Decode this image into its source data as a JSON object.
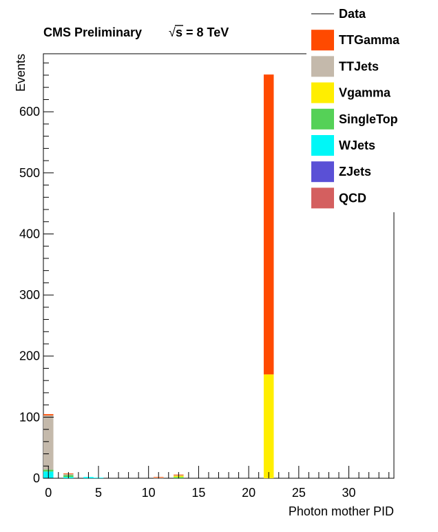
{
  "header": {
    "experiment": "CMS Preliminary",
    "energy_prefix": "s = 8 TeV"
  },
  "chart_data": {
    "type": "bar",
    "stacked": true,
    "title": "CMS Preliminary √s = 8 TeV",
    "xlabel": "Photon mother PID",
    "ylabel": "Events",
    "xlim": [
      -0.5,
      34.5
    ],
    "ylim": [
      0,
      695
    ],
    "x_ticks": [
      0,
      5,
      10,
      15,
      20,
      25,
      30
    ],
    "y_ticks": [
      0,
      100,
      200,
      300,
      400,
      500,
      600
    ],
    "bin_edges_centered_on_integers": true,
    "legend": {
      "placement": "top-right",
      "entries": [
        {
          "name": "Data",
          "color": "#000000",
          "style": "line"
        },
        {
          "name": "TTGamma",
          "color": "#ff4a00",
          "style": "box"
        },
        {
          "name": "TTJets",
          "color": "#c4b9ab",
          "style": "box"
        },
        {
          "name": "Vgamma",
          "color": "#ffee00",
          "style": "box"
        },
        {
          "name": "SingleTop",
          "color": "#55d157",
          "style": "box"
        },
        {
          "name": "WJets",
          "color": "#00f7f7",
          "style": "box"
        },
        {
          "name": "ZJets",
          "color": "#5a50d6",
          "style": "box"
        },
        {
          "name": "QCD",
          "color": "#d45f5f",
          "style": "box"
        }
      ]
    },
    "stack_order_bottom_to_top": [
      "QCD",
      "ZJets",
      "WJets",
      "SingleTop",
      "Vgamma",
      "TTJets",
      "TTGamma"
    ],
    "bins": [
      {
        "x": 0,
        "QCD": 0,
        "ZJets": 0,
        "WJets": 11,
        "SingleTop": 3,
        "Vgamma": 0,
        "TTJets": 89,
        "TTGamma": 2
      },
      {
        "x": 2,
        "QCD": 0,
        "ZJets": 0,
        "WJets": 2,
        "SingleTop": 3,
        "Vgamma": 0,
        "TTJets": 2,
        "TTGamma": 1
      },
      {
        "x": 4,
        "QCD": 0,
        "ZJets": 0,
        "WJets": 2,
        "SingleTop": 0,
        "Vgamma": 0,
        "TTJets": 0,
        "TTGamma": 0
      },
      {
        "x": 5,
        "QCD": 0,
        "ZJets": 0,
        "WJets": 1,
        "SingleTop": 0,
        "Vgamma": 0,
        "TTJets": 0,
        "TTGamma": 0
      },
      {
        "x": 11,
        "QCD": 0,
        "ZJets": 0,
        "WJets": 0,
        "SingleTop": 0,
        "Vgamma": 0,
        "TTJets": 1,
        "TTGamma": 1
      },
      {
        "x": 13,
        "QCD": 0,
        "ZJets": 0,
        "WJets": 0,
        "SingleTop": 2,
        "Vgamma": 2,
        "TTJets": 1,
        "TTGamma": 1
      },
      {
        "x": 22,
        "QCD": 0,
        "ZJets": 0,
        "WJets": 0,
        "SingleTop": 0,
        "Vgamma": 170,
        "TTJets": 0,
        "TTGamma": 491
      }
    ]
  }
}
